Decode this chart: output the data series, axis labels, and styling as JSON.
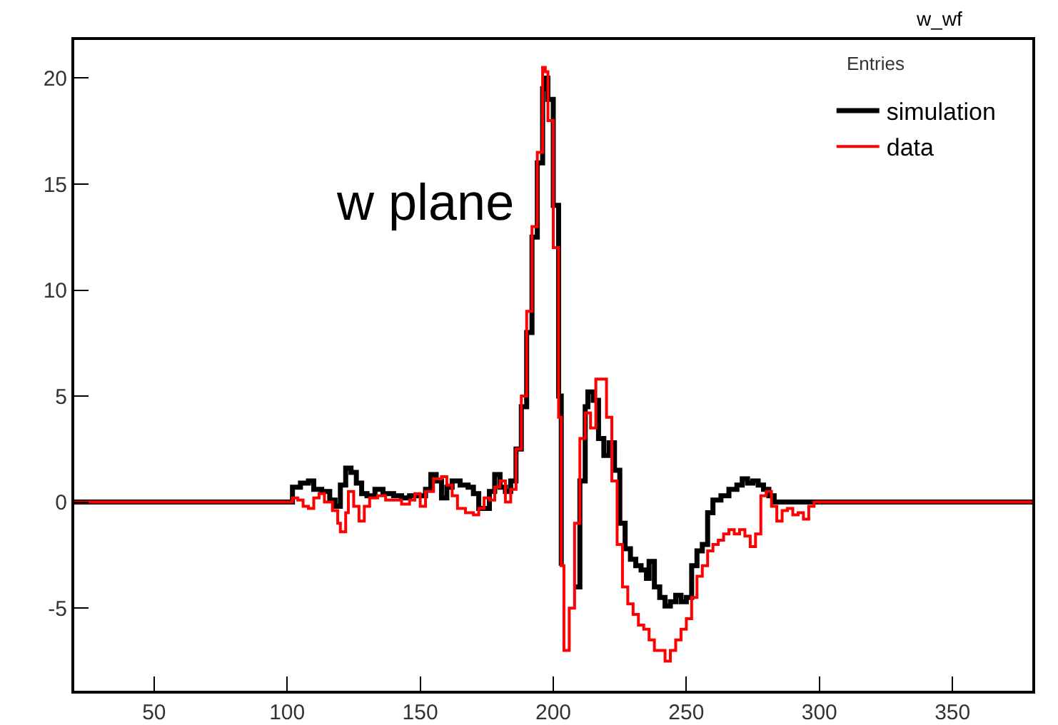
{
  "chart_data": {
    "type": "step",
    "annotations": [
      "w plane",
      "w_wf",
      "Entries"
    ],
    "xlim": [
      20,
      380
    ],
    "xticks": [
      50,
      100,
      150,
      200,
      250,
      300,
      350
    ],
    "ylim": [
      -8.9,
      21.8
    ],
    "yticks": [
      -5,
      0,
      5,
      10,
      15,
      20
    ],
    "grid": false,
    "legend": "top right",
    "marker": "none",
    "line_style": "solid",
    "series": [
      {
        "name": "simulation",
        "color": "#000000",
        "x": [
          20,
          100,
          102,
          105,
          108,
          110,
          113,
          116,
          118,
          120,
          122,
          124,
          126,
          128,
          130,
          133,
          136,
          140,
          143,
          146,
          150,
          152,
          154,
          156,
          158,
          160,
          162,
          165,
          168,
          170,
          172,
          174,
          176,
          178,
          180,
          182,
          184,
          186,
          188,
          190,
          192,
          194,
          196,
          197,
          198,
          200,
          202,
          203,
          204,
          206,
          208,
          210,
          212,
          213,
          215,
          217,
          219,
          221,
          223,
          225,
          227,
          229,
          231,
          233,
          235,
          236,
          238,
          240,
          242,
          244,
          246,
          248,
          250,
          252,
          254,
          256,
          258,
          260,
          263,
          266,
          269,
          271,
          273,
          275,
          277,
          279,
          281,
          283,
          380
        ],
        "values": [
          0,
          0,
          0.7,
          0.9,
          1.0,
          0.6,
          0.5,
          0.1,
          -0.2,
          0.8,
          1.6,
          1.4,
          0.9,
          0.4,
          0.3,
          0.6,
          0.4,
          0.3,
          0.2,
          0.3,
          0.3,
          0.6,
          1.3,
          1.0,
          0.2,
          0.7,
          1.0,
          0.8,
          0.7,
          0.4,
          -0.3,
          -0.3,
          0.5,
          1.3,
          0.7,
          0.5,
          1.0,
          2.5,
          4.5,
          8,
          12.5,
          16,
          19.5,
          20,
          19,
          14,
          5,
          -3,
          null,
          null,
          -4,
          1,
          4.5,
          5.2,
          4.8,
          3,
          2.2,
          2.8,
          1.5,
          -1,
          -2.2,
          -2.7,
          -3,
          -3.2,
          -3.6,
          -2.8,
          -4,
          -4.5,
          -4.9,
          -4.7,
          -4.4,
          -4.7,
          -4.5,
          -3,
          -2.3,
          -2,
          -0.5,
          0.1,
          0.3,
          0.6,
          0.8,
          1.1,
          0.9,
          1.0,
          0.8,
          0.6,
          0.3,
          0,
          0
        ]
      },
      {
        "name": "data",
        "color": "#ff0000",
        "x": [
          20,
          100,
          102,
          104,
          106,
          108,
          110,
          112,
          114,
          117,
          119,
          120,
          122,
          123,
          125,
          127,
          129,
          131,
          134,
          137,
          140,
          143,
          146,
          148,
          150,
          152,
          155,
          158,
          160,
          162,
          164,
          167,
          170,
          172,
          174,
          176,
          178,
          180,
          182,
          184,
          186,
          188,
          190,
          192,
          194,
          196,
          197,
          198,
          200,
          202,
          203,
          204,
          206,
          208,
          210,
          212,
          214,
          216,
          218,
          220,
          222,
          224,
          226,
          228,
          230,
          232,
          234,
          236,
          238,
          240,
          242,
          244,
          246,
          248,
          250,
          252,
          254,
          256,
          258,
          260,
          262,
          264,
          266,
          268,
          270,
          272,
          274,
          276,
          278,
          280,
          282,
          284,
          286,
          288,
          290,
          292,
          294,
          296,
          298,
          380
        ],
        "values": [
          0,
          0,
          0.2,
          0.1,
          -0.2,
          -0.3,
          0.2,
          0.4,
          0.0,
          -0.4,
          -1.0,
          -1.4,
          -0.5,
          0.5,
          -0.2,
          -0.9,
          -0.2,
          0.2,
          0.3,
          0.1,
          0.1,
          -0.1,
          0.1,
          0.4,
          -0.2,
          0.5,
          1.1,
          1.2,
          0.8,
          0.3,
          -0.3,
          -0.5,
          -0.6,
          -0.3,
          0.2,
          0.1,
          0.7,
          1.0,
          0.0,
          0.6,
          2.5,
          5,
          9,
          13,
          16.5,
          20.5,
          20.3,
          18,
          12,
          4,
          -3,
          -7,
          -5,
          -1,
          3,
          4.2,
          3.5,
          5.8,
          5.8,
          4,
          1,
          -2,
          -4,
          -4.8,
          -5.3,
          -5.8,
          -6.0,
          -6.5,
          -7.0,
          -7.0,
          -7.5,
          -7.0,
          -6.5,
          -6.0,
          -5.5,
          -4.5,
          -3.5,
          -3.0,
          -2.3,
          -2.0,
          -1.8,
          -1.5,
          -1.3,
          -1.5,
          -1.3,
          -1.6,
          -2.1,
          -1.5,
          0.3,
          0.5,
          -0.2,
          -0.9,
          -0.4,
          -0.3,
          -0.6,
          -0.5,
          -0.8,
          -0.2,
          0,
          0
        ]
      }
    ]
  }
}
